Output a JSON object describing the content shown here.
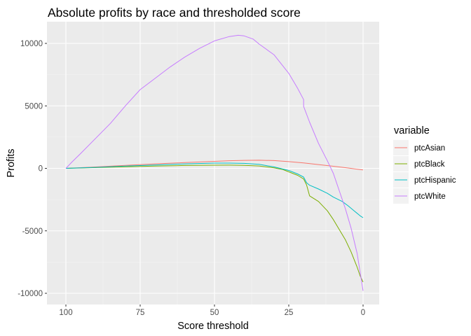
{
  "chart_data": {
    "type": "line",
    "title": "Absolute profits by race and thresholded score",
    "xlabel": "Score threshold",
    "ylabel": "Profits",
    "x_reversed": true,
    "xlim": [
      100,
      0
    ],
    "ylim": [
      -10400,
      11500
    ],
    "x_ticks": [
      100,
      75,
      50,
      25,
      0
    ],
    "x_tick_labels": [
      "100",
      "75",
      "50",
      "25",
      "0"
    ],
    "y_ticks": [
      10000,
      5000,
      0,
      -5000,
      -10000
    ],
    "y_tick_labels": [
      "10000",
      "5000",
      "0",
      "-5000",
      "-10000"
    ],
    "grid": true,
    "legend": {
      "title": "variable",
      "position": "right"
    },
    "series": [
      {
        "name": "ptcAsian",
        "color": "#F8766D",
        "x": [
          100,
          90,
          80,
          70,
          60,
          50,
          45,
          40,
          35,
          30,
          25,
          20,
          15,
          10,
          5,
          0
        ],
        "y": [
          0,
          110,
          240,
          360,
          460,
          560,
          610,
          640,
          650,
          620,
          540,
          430,
          300,
          170,
          30,
          -130
        ]
      },
      {
        "name": "ptcBlack",
        "color": "#7CAE00",
        "x": [
          100,
          90,
          80,
          70,
          60,
          50,
          45,
          40,
          35,
          30,
          27,
          25,
          22,
          20,
          19,
          18,
          15,
          12,
          10,
          8,
          6,
          4,
          2,
          1,
          0
        ],
        "y": [
          0,
          60,
          130,
          180,
          230,
          250,
          260,
          240,
          190,
          40,
          -90,
          -280,
          -560,
          -850,
          -1320,
          -2200,
          -2650,
          -3400,
          -4100,
          -4900,
          -5700,
          -6700,
          -7900,
          -8600,
          -9100
        ]
      },
      {
        "name": "ptcHispanic",
        "color": "#00BFC4",
        "x": [
          100,
          90,
          80,
          70,
          60,
          50,
          45,
          40,
          35,
          30,
          25,
          22,
          20,
          19,
          18,
          15,
          12,
          10,
          7,
          5,
          3,
          1,
          0
        ],
        "y": [
          0,
          80,
          180,
          270,
          360,
          420,
          420,
          400,
          320,
          120,
          -170,
          -450,
          -700,
          -1150,
          -1350,
          -1650,
          -2000,
          -2300,
          -2650,
          -3000,
          -3400,
          -3800,
          -3950
        ]
      },
      {
        "name": "ptcWhite",
        "color": "#C77CFF",
        "x": [
          100,
          98,
          95,
          90,
          85,
          80,
          75,
          70,
          65,
          60,
          55,
          50,
          45,
          42,
          40,
          37,
          35,
          30,
          27,
          25,
          22,
          20,
          20,
          18,
          15,
          12,
          10,
          8,
          6,
          4,
          2,
          1,
          0
        ],
        "y": [
          0,
          500,
          1200,
          2400,
          3600,
          5000,
          6300,
          7200,
          8100,
          8900,
          9600,
          10200,
          10550,
          10650,
          10600,
          10350,
          9950,
          9100,
          8200,
          7600,
          6400,
          5500,
          4950,
          3700,
          2000,
          600,
          -400,
          -1800,
          -3200,
          -4800,
          -6800,
          -8300,
          -9800
        ]
      }
    ]
  }
}
